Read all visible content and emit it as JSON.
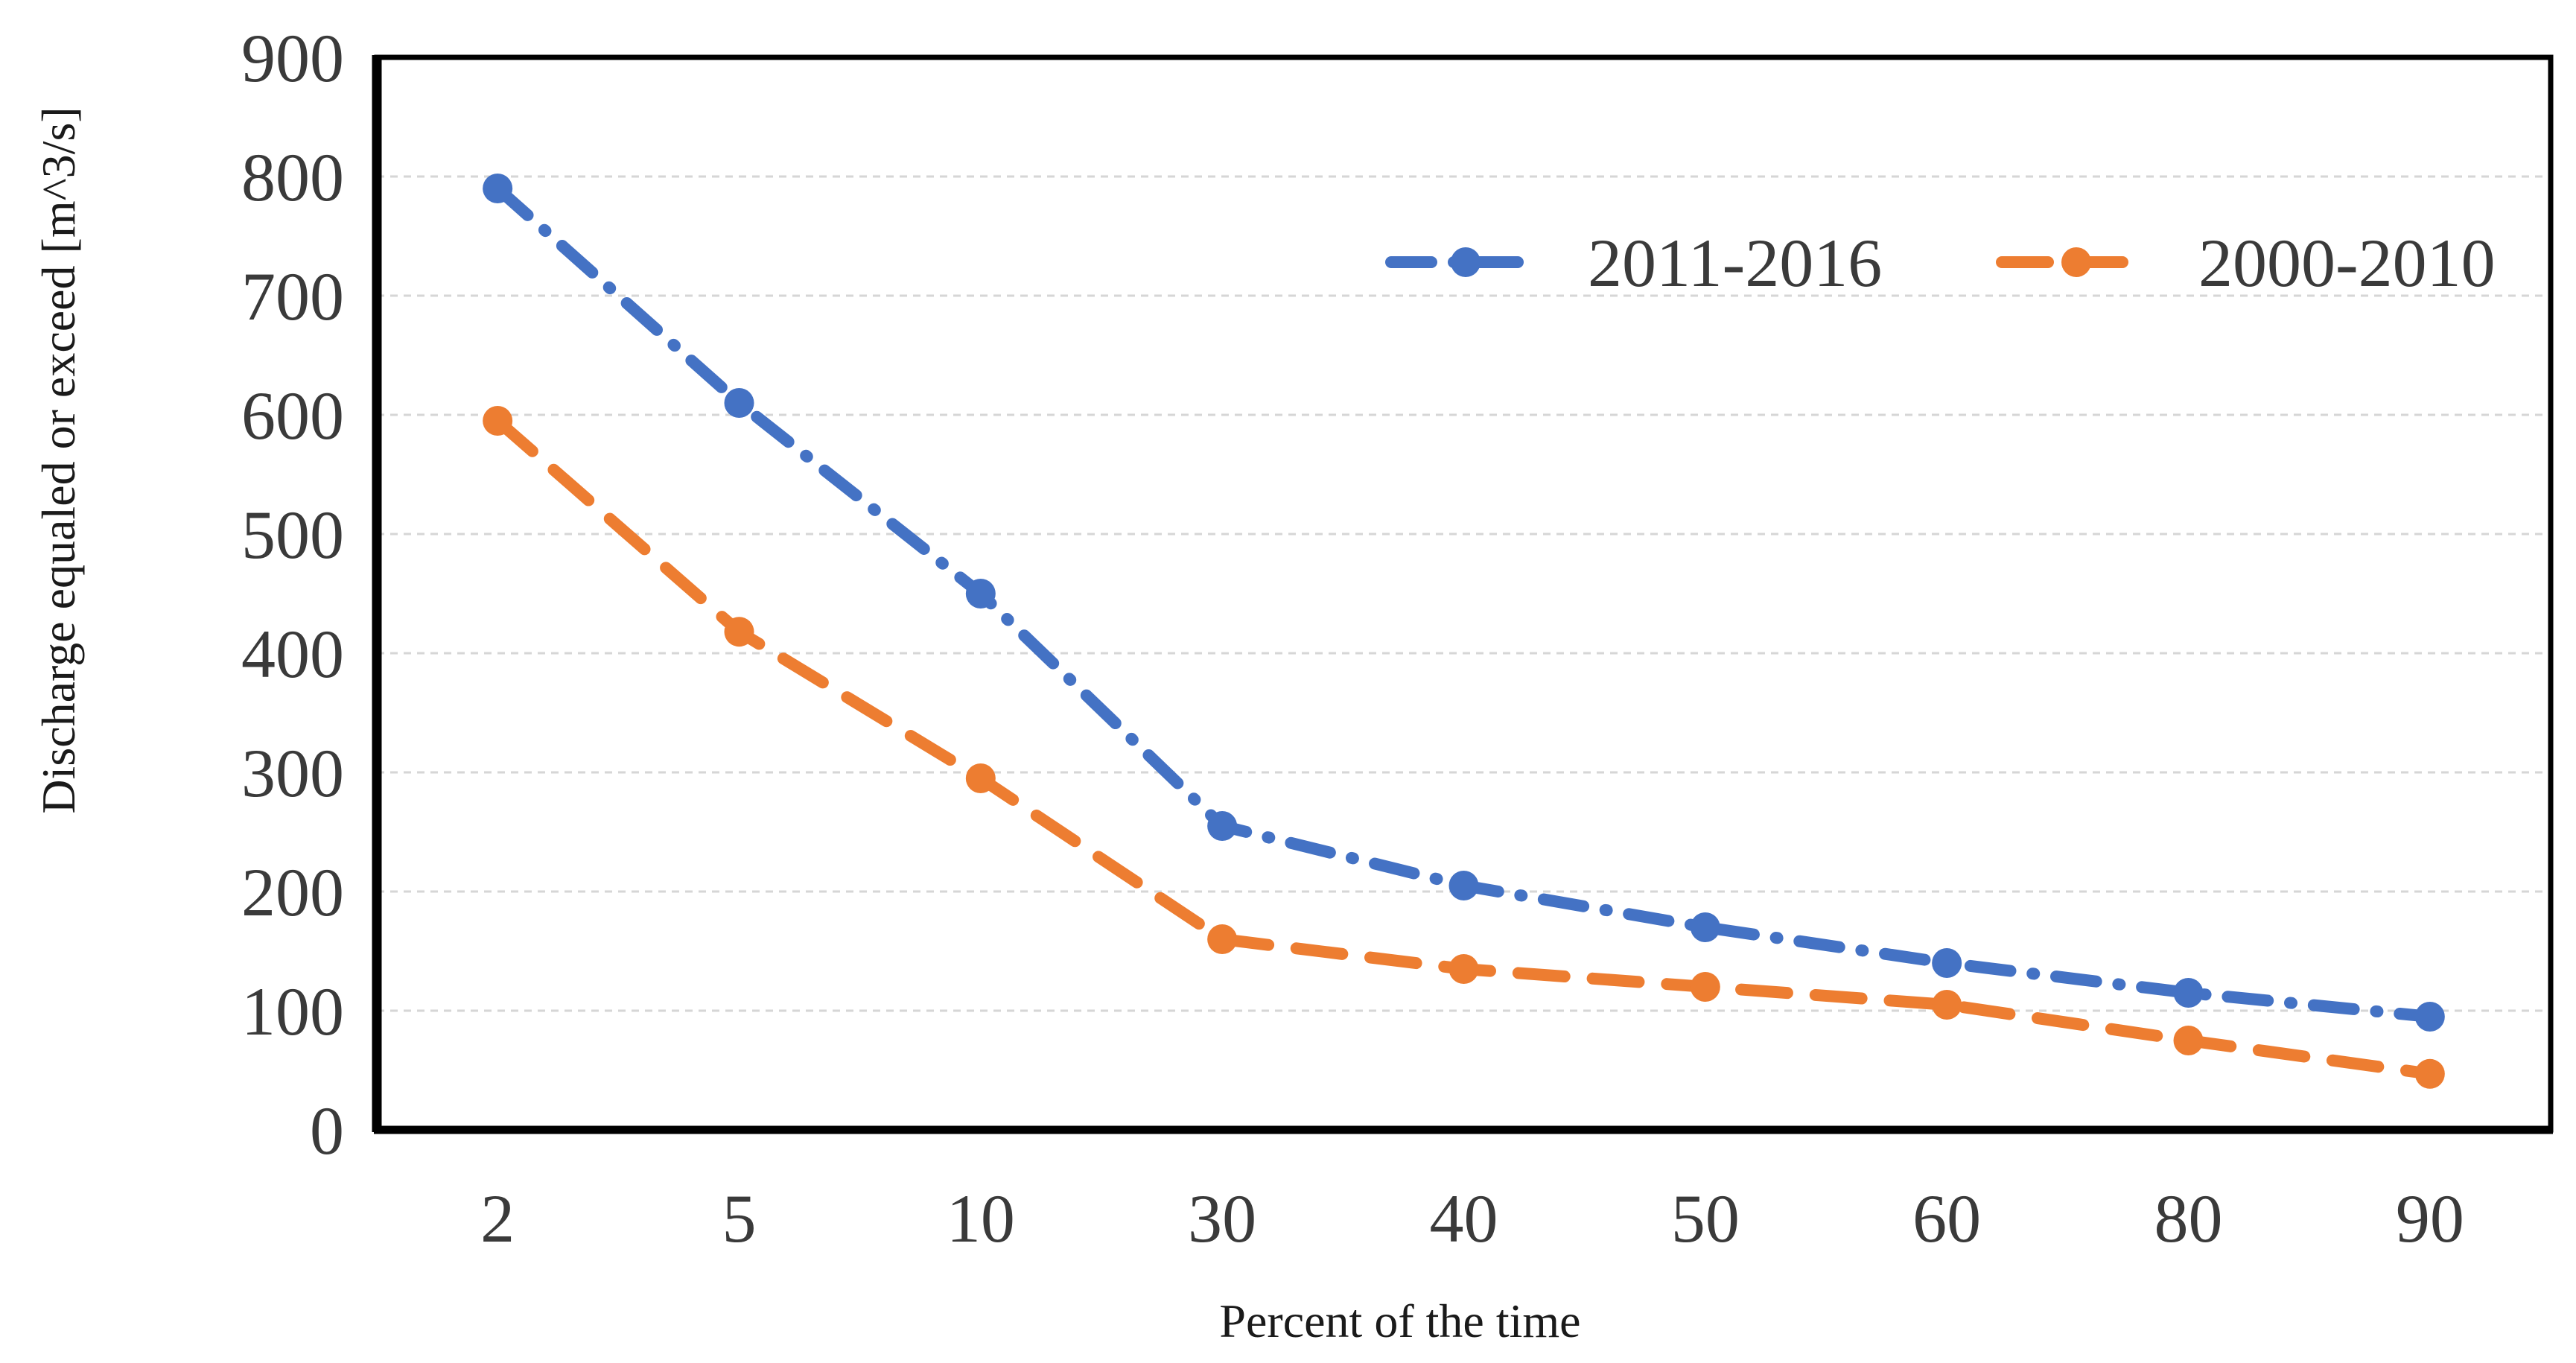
{
  "chart_data": {
    "type": "line",
    "title": "",
    "xlabel": "Percent of the time",
    "ylabel": "Discharge equaled or exceed [m^3/s]",
    "categories": [
      "2",
      "5",
      "10",
      "30",
      "40",
      "50",
      "60",
      "80",
      "90"
    ],
    "series": [
      {
        "name": "2011-2016",
        "color": "#4472C4",
        "line_style": "dash-dot",
        "marker": "circle",
        "values": [
          790,
          610,
          450,
          255,
          205,
          170,
          140,
          115,
          95
        ]
      },
      {
        "name": "2000-2010",
        "color": "#ED7D31",
        "line_style": "dash",
        "marker": "circle",
        "values": [
          595,
          418,
          295,
          160,
          135,
          120,
          105,
          75,
          47
        ]
      }
    ],
    "ylim": [
      0,
      900
    ],
    "ytick_step": 100,
    "yticks": [
      0,
      100,
      200,
      300,
      400,
      500,
      600,
      700,
      800,
      900
    ],
    "grid": true,
    "grid_color": "#d6d6d6",
    "frame_color": "#000000",
    "text_color": "#3a3a3a",
    "legend_position": "top-right-inside"
  }
}
